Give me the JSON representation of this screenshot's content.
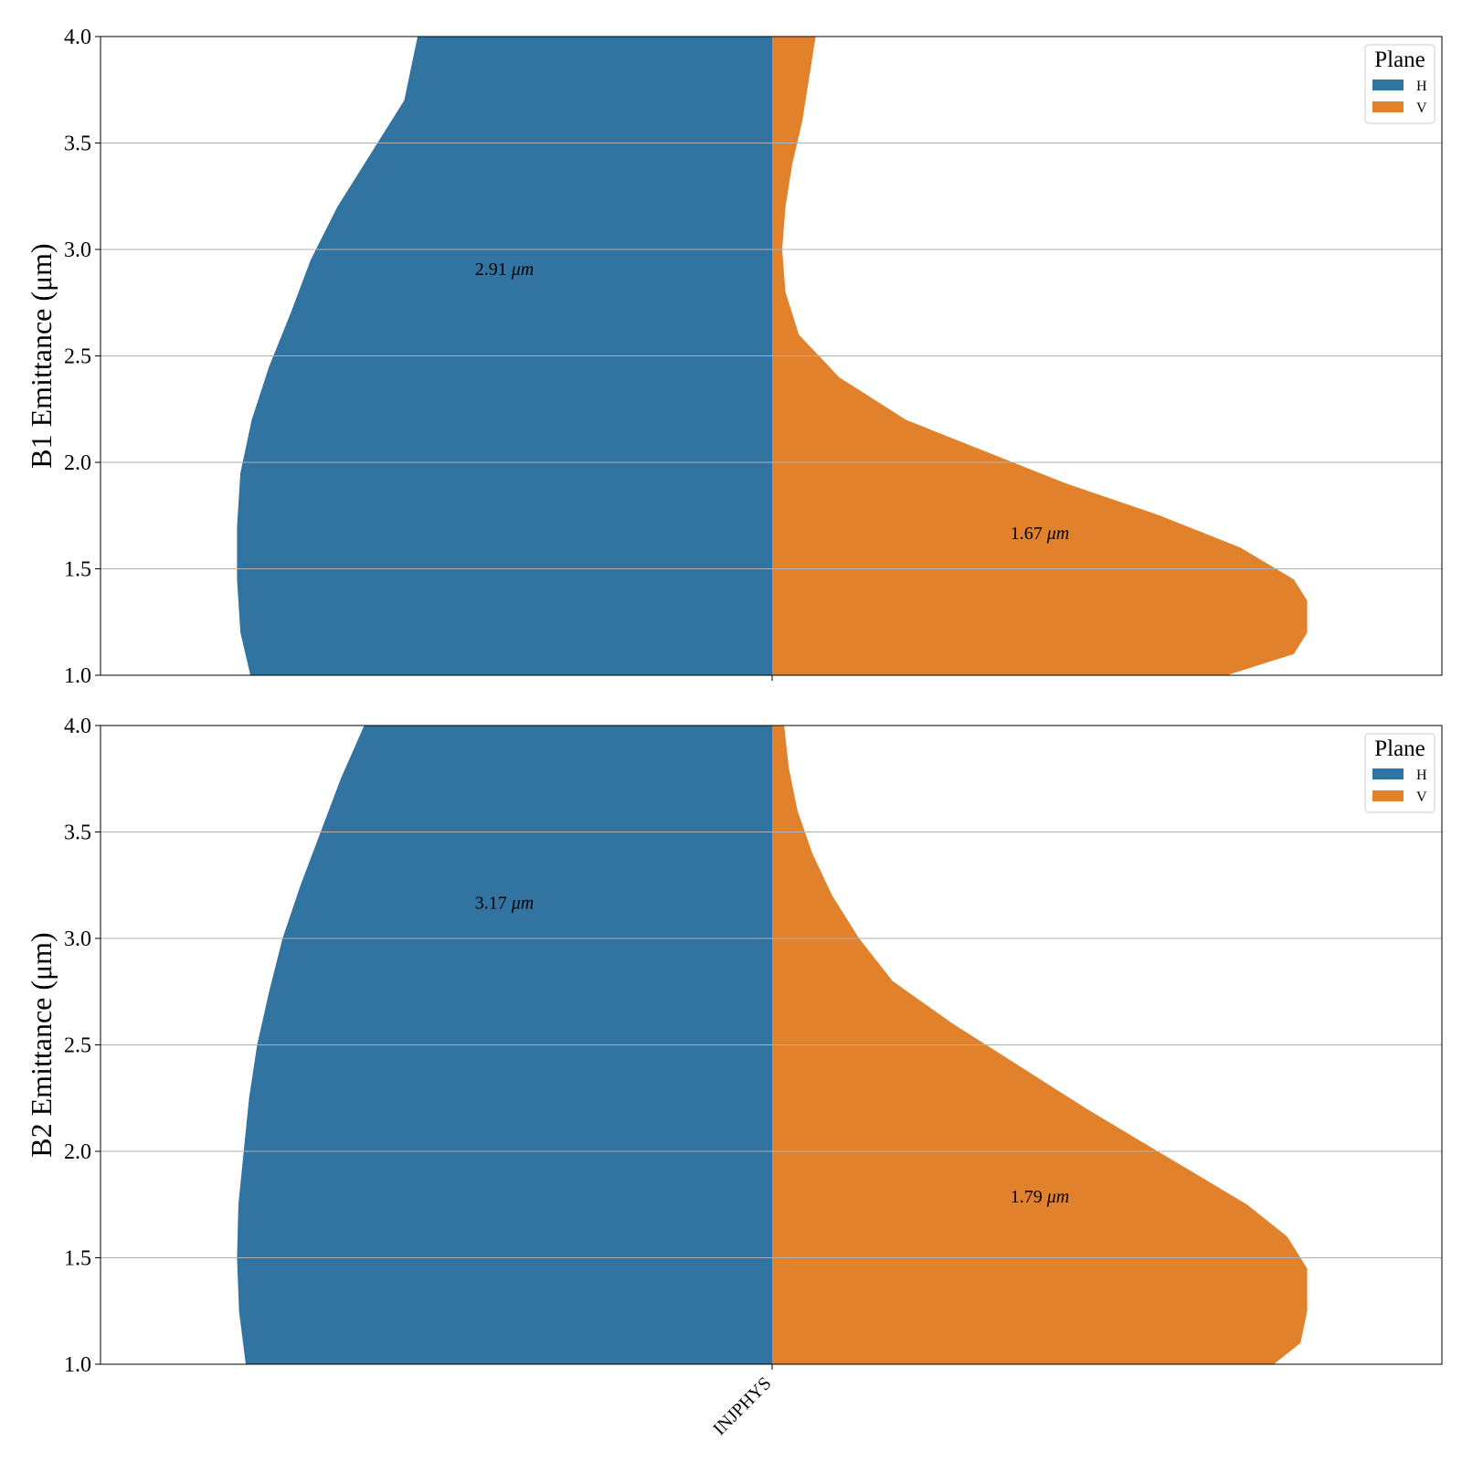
{
  "chart_data": [
    {
      "type": "violin",
      "ylabel": "B1 Emittance (μm)",
      "ylim": [
        1.0,
        4.0
      ],
      "yticks": [
        "1.0",
        "1.5",
        "2.0",
        "2.5",
        "3.0",
        "3.5",
        "4.0"
      ],
      "category": "INJPHYS",
      "grid": "y",
      "legend": {
        "title": "Plane",
        "placement": "top-right",
        "entries": [
          "H",
          "V"
        ]
      },
      "series": [
        {
          "name": "H",
          "side": "left",
          "color": "#3274a1",
          "annotation": {
            "value": "2.91",
            "unit": "μm",
            "y": 2.91
          },
          "profile": [
            [
              1.0,
              0.78
            ],
            [
              1.2,
              0.795
            ],
            [
              1.45,
              0.8
            ],
            [
              1.7,
              0.8
            ],
            [
              1.95,
              0.795
            ],
            [
              2.2,
              0.778
            ],
            [
              2.45,
              0.752
            ],
            [
              2.7,
              0.72
            ],
            [
              2.95,
              0.69
            ],
            [
              3.2,
              0.65
            ],
            [
              3.45,
              0.6
            ],
            [
              3.7,
              0.55
            ],
            [
              4.0,
              0.53
            ]
          ]
        },
        {
          "name": "V",
          "side": "right",
          "color": "#e1812c",
          "annotation": {
            "value": "1.67",
            "unit": "μm",
            "y": 1.67
          },
          "profile": [
            [
              1.0,
              0.68
            ],
            [
              1.1,
              0.78
            ],
            [
              1.2,
              0.8
            ],
            [
              1.35,
              0.8
            ],
            [
              1.45,
              0.78
            ],
            [
              1.6,
              0.7
            ],
            [
              1.75,
              0.58
            ],
            [
              1.9,
              0.44
            ],
            [
              2.05,
              0.32
            ],
            [
              2.2,
              0.2
            ],
            [
              2.4,
              0.1
            ],
            [
              2.6,
              0.04
            ],
            [
              2.8,
              0.02
            ],
            [
              3.0,
              0.015
            ],
            [
              3.2,
              0.02
            ],
            [
              3.4,
              0.03
            ],
            [
              3.6,
              0.045
            ],
            [
              3.8,
              0.055
            ],
            [
              4.0,
              0.065
            ]
          ]
        }
      ]
    },
    {
      "type": "violin",
      "ylabel": "B2 Emittance (μm)",
      "ylim": [
        1.0,
        4.0
      ],
      "yticks": [
        "1.0",
        "1.5",
        "2.0",
        "2.5",
        "3.0",
        "3.5",
        "4.0"
      ],
      "category": "INJPHYS",
      "grid": "y",
      "legend": {
        "title": "Plane",
        "placement": "top-right",
        "entries": [
          "H",
          "V"
        ]
      },
      "series": [
        {
          "name": "H",
          "side": "left",
          "color": "#3274a1",
          "annotation": {
            "value": "3.17",
            "unit": "μm",
            "y": 3.17
          },
          "profile": [
            [
              1.0,
              0.787
            ],
            [
              1.25,
              0.797
            ],
            [
              1.5,
              0.8
            ],
            [
              1.75,
              0.798
            ],
            [
              2.0,
              0.79
            ],
            [
              2.25,
              0.782
            ],
            [
              2.5,
              0.77
            ],
            [
              2.75,
              0.752
            ],
            [
              3.0,
              0.732
            ],
            [
              3.25,
              0.705
            ],
            [
              3.5,
              0.675
            ],
            [
              3.75,
              0.645
            ],
            [
              4.0,
              0.61
            ]
          ]
        },
        {
          "name": "V",
          "side": "right",
          "color": "#e1812c",
          "annotation": {
            "value": "1.79",
            "unit": "μm",
            "y": 1.79
          },
          "profile": [
            [
              1.0,
              0.75
            ],
            [
              1.1,
              0.79
            ],
            [
              1.25,
              0.8
            ],
            [
              1.45,
              0.8
            ],
            [
              1.6,
              0.77
            ],
            [
              1.75,
              0.71
            ],
            [
              1.9,
              0.63
            ],
            [
              2.05,
              0.55
            ],
            [
              2.2,
              0.47
            ],
            [
              2.4,
              0.37
            ],
            [
              2.6,
              0.27
            ],
            [
              2.8,
              0.18
            ],
            [
              3.0,
              0.13
            ],
            [
              3.2,
              0.09
            ],
            [
              3.4,
              0.06
            ],
            [
              3.6,
              0.038
            ],
            [
              3.8,
              0.025
            ],
            [
              4.0,
              0.018
            ]
          ]
        }
      ]
    }
  ]
}
